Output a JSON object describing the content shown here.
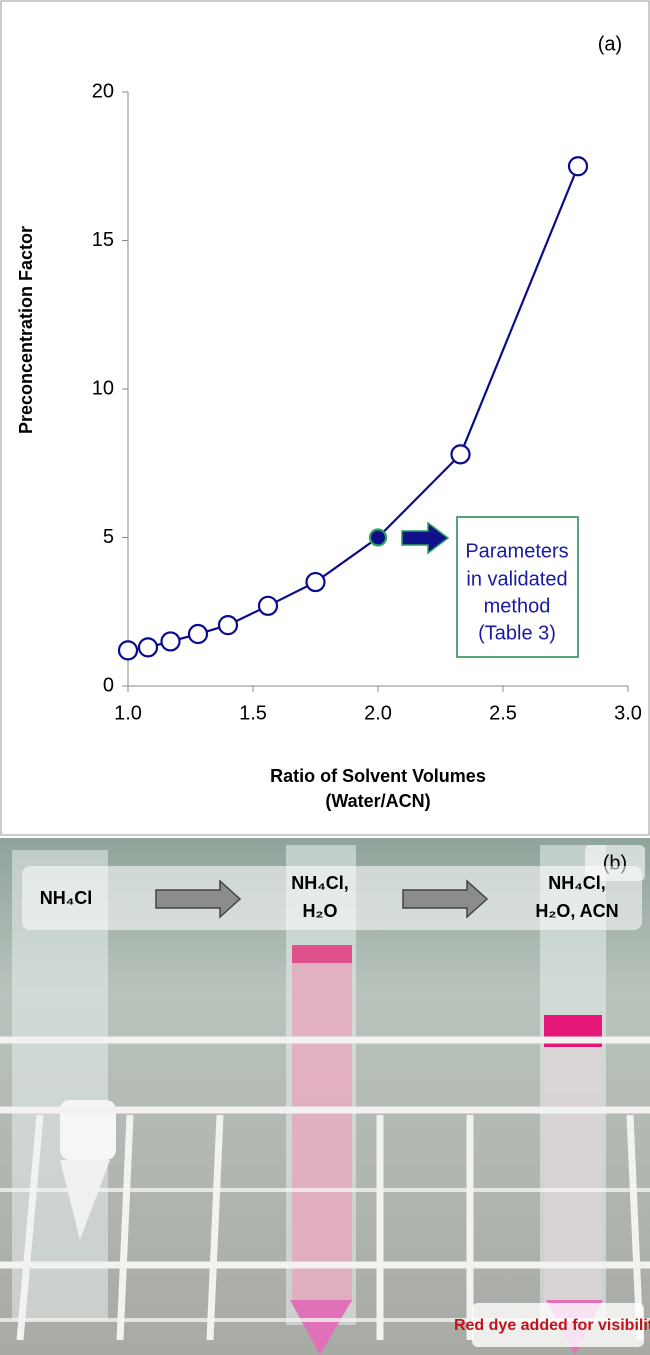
{
  "chart_data": {
    "type": "line",
    "panel_label": "(a)",
    "x_label": [
      "Ratio of Solvent Volumes",
      "(Water/ACN)"
    ],
    "y_label": "Preconcentration Factor",
    "series": [
      {
        "color": "#0b0b8c",
        "x": [
          1.0,
          1.08,
          1.17,
          1.28,
          1.4,
          1.56,
          1.75,
          2.0,
          2.33,
          2.8
        ],
        "values": [
          1.2,
          1.3,
          1.5,
          1.75,
          2.05,
          2.7,
          3.5,
          5.0,
          7.8,
          17.5
        ]
      }
    ],
    "highlight_point": 7,
    "highlight_edge": "#2aa05a",
    "xlim": [
      1.0,
      3.0
    ],
    "xticks": [
      {
        "value": 1,
        "label": "1.0"
      },
      {
        "value": 1.5,
        "label": "1.5"
      },
      {
        "value": 2,
        "label": "2.0"
      },
      {
        "value": 2.5,
        "label": "2.5"
      },
      {
        "value": 3,
        "label": "3.0"
      }
    ],
    "ylim": [
      0,
      20
    ],
    "yticks": [
      0,
      5,
      10,
      15,
      20
    ],
    "grid": false,
    "annotation": [
      "Parameters",
      "in validated",
      "method",
      "(Table 3)"
    ]
  },
  "photo_panel": {
    "label": "(b)",
    "steps": [
      "NH₄Cl",
      [
        "NH₄Cl,",
        "H₂O"
      ],
      [
        "NH₄Cl,",
        "H₂O, ACN"
      ]
    ],
    "note": "Red dye added for visibility"
  }
}
